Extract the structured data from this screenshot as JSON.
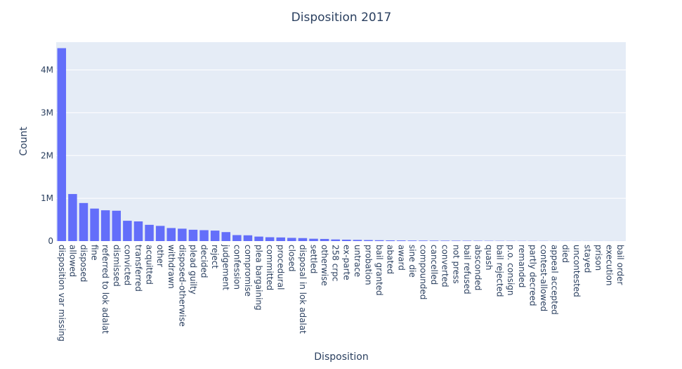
{
  "chart_data": {
    "type": "bar",
    "title": "Disposition 2017",
    "xlabel": "Disposition",
    "ylabel": "Count",
    "ylim": [
      0,
      4650000
    ],
    "yticks": [
      0,
      1000000,
      2000000,
      3000000,
      4000000
    ],
    "ytick_labels": [
      "0",
      "1M",
      "2M",
      "3M",
      "4M"
    ],
    "bar_color": "#636efa",
    "plot_bgcolor": "#e5ecf6",
    "grid": true,
    "categories": [
      "disposition var missing",
      "allowed",
      "disposed",
      "fine",
      "referred to lok adalat",
      "dismissed",
      "convicted",
      "transferred",
      "acquitted",
      "other",
      "withdrawn",
      "disposed-otherwise",
      "plead guilty",
      "decided",
      "reject",
      "judgement",
      "confession",
      "compromise",
      "plea bargaining",
      "committed",
      "procedural",
      "closed",
      "disposal in lok adalat",
      "settled",
      "otherwise",
      "258 crpc",
      "ex-parte",
      "untrace",
      "probation",
      "bail granted",
      "abated",
      "award",
      "sine die",
      "compounded",
      "cancelled",
      "converted",
      "not press",
      "bail refused",
      "absconded",
      "quash",
      "bail rejected",
      "p.o. consign",
      "remanded",
      "partly decreed",
      "contest-allowed",
      "appeal accepted",
      "died",
      "uncontested",
      "stayed",
      "prison",
      "execution",
      "bail order"
    ],
    "values": [
      4510000,
      1100000,
      890000,
      760000,
      720000,
      710000,
      475000,
      460000,
      380000,
      355000,
      305000,
      290000,
      265000,
      255000,
      245000,
      210000,
      140000,
      135000,
      105000,
      90000,
      85000,
      75000,
      70000,
      55000,
      50000,
      38000,
      33000,
      28000,
      24000,
      20000,
      17000,
      15000,
      13000,
      12000,
      11000,
      10000,
      9000,
      8000,
      7000,
      6000,
      5000,
      4500,
      4000,
      3500,
      3000,
      2500,
      2000,
      1800,
      1500,
      1200,
      1000,
      800
    ]
  }
}
